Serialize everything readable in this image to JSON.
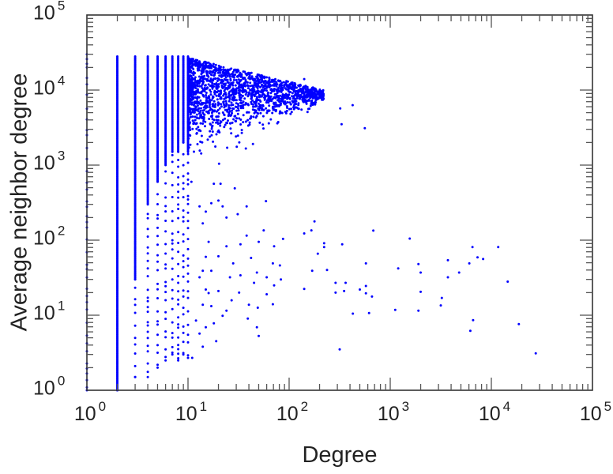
{
  "chart_data": {
    "type": "scatter",
    "title": "",
    "xlabel": "Degree",
    "ylabel": "Average neighbor degree",
    "xscale": "log",
    "yscale": "log",
    "xlim": [
      1,
      100000
    ],
    "ylim": [
      1,
      100000
    ],
    "grid": false,
    "marker_color": "#0000ff",
    "x_ticks": [
      {
        "base": "10",
        "exp": "0"
      },
      {
        "base": "10",
        "exp": "1"
      },
      {
        "base": "10",
        "exp": "2"
      },
      {
        "base": "10",
        "exp": "3"
      },
      {
        "base": "10",
        "exp": "4"
      },
      {
        "base": "10",
        "exp": "5"
      }
    ],
    "y_ticks": [
      {
        "base": "10",
        "exp": "0"
      },
      {
        "base": "10",
        "exp": "1"
      },
      {
        "base": "10",
        "exp": "2"
      },
      {
        "base": "10",
        "exp": "3"
      },
      {
        "base": "10",
        "exp": "4"
      },
      {
        "base": "10",
        "exp": "5"
      }
    ],
    "degree_columns": [
      {
        "x": 1,
        "y_top": 30000,
        "dense_min": 20000,
        "sparse_min": 1
      },
      {
        "x": 2,
        "y_top": 28000,
        "dense_min": 1,
        "sparse_min": 1
      },
      {
        "x": 3,
        "y_top": 28000,
        "dense_min": 30,
        "sparse_min": 1.5
      },
      {
        "x": 4,
        "y_top": 28000,
        "dense_min": 300,
        "sparse_min": 1.5
      },
      {
        "x": 5,
        "y_top": 28000,
        "dense_min": 600,
        "sparse_min": 2
      },
      {
        "x": 6,
        "y_top": 28000,
        "dense_min": 1000,
        "sparse_min": 2.5
      },
      {
        "x": 7,
        "y_top": 28000,
        "dense_min": 1500,
        "sparse_min": 3
      },
      {
        "x": 8,
        "y_top": 28000,
        "dense_min": 1500,
        "sparse_min": 2.5
      },
      {
        "x": 9,
        "y_top": 28000,
        "dense_min": 2000,
        "sparse_min": 3
      },
      {
        "x": 10,
        "y_top": 28000,
        "dense_min": 1500,
        "sparse_min": 2.7
      }
    ],
    "dense_cloud": {
      "x_range": [
        10,
        220
      ],
      "y_center": 8500,
      "y_max_at_x10": 27000,
      "y_max_at_xmax": 10000,
      "count": 1800
    },
    "points": [
      [
        141,
        14000
      ],
      [
        320,
        5700
      ],
      [
        425,
        6300
      ],
      [
        330,
        3500
      ],
      [
        560,
        3100
      ],
      [
        141,
        123
      ],
      [
        166,
        135
      ],
      [
        178,
        178
      ],
      [
        680,
        134
      ],
      [
        222,
        91
      ],
      [
        222,
        81
      ],
      [
        192,
        66
      ],
      [
        335,
        88
      ],
      [
        1560,
        105
      ],
      [
        169,
        39
      ],
      [
        237,
        40
      ],
      [
        141,
        22.4
      ],
      [
        288,
        27
      ],
      [
        362,
        27
      ],
      [
        288,
        20
      ],
      [
        350,
        21
      ],
      [
        575,
        49
      ],
      [
        500,
        22
      ],
      [
        575,
        24.5
      ],
      [
        575,
        19.6
      ],
      [
        660,
        17.7
      ],
      [
        427,
        10.5
      ],
      [
        617,
        10.7
      ],
      [
        316,
        3.5
      ],
      [
        1200,
        42
      ],
      [
        1120,
        11.8
      ],
      [
        1900,
        48
      ],
      [
        2000,
        37
      ],
      [
        2000,
        20.5
      ],
      [
        1900,
        11.5
      ],
      [
        3720,
        54
      ],
      [
        3720,
        32
      ],
      [
        3240,
        17
      ],
      [
        3160,
        13.5
      ],
      [
        4800,
        37
      ],
      [
        6050,
        49
      ],
      [
        6500,
        81
      ],
      [
        7300,
        59
      ],
      [
        8300,
        56
      ],
      [
        11700,
        81
      ],
      [
        6600,
        8.6
      ],
      [
        6200,
        6.2
      ],
      [
        14500,
        28
      ],
      [
        18700,
        7.6
      ],
      [
        27500,
        3.1
      ],
      [
        10.8,
        600
      ],
      [
        18,
        565
      ],
      [
        21,
        565
      ],
      [
        29,
        490
      ],
      [
        59,
        331
      ],
      [
        20,
        337
      ],
      [
        13,
        282
      ],
      [
        22,
        282
      ],
      [
        38,
        282
      ],
      [
        31,
        222
      ],
      [
        24,
        200
      ],
      [
        56,
        135
      ],
      [
        38,
        115
      ],
      [
        87,
        104
      ],
      [
        50,
        95
      ],
      [
        71,
        83
      ],
      [
        33,
        88
      ],
      [
        24,
        83
      ],
      [
        42,
        58
      ],
      [
        69,
        49
      ],
      [
        81,
        46
      ],
      [
        48,
        37
      ],
      [
        60,
        32
      ],
      [
        83,
        30
      ],
      [
        45,
        27
      ],
      [
        71,
        25
      ],
      [
        32,
        20
      ],
      [
        60,
        19
      ],
      [
        69,
        14
      ],
      [
        40,
        13.8
      ],
      [
        49,
        12.6
      ],
      [
        27,
        15.8
      ],
      [
        24,
        11.5
      ],
      [
        22,
        9.8
      ],
      [
        39,
        9
      ],
      [
        48,
        6.9
      ],
      [
        50,
        5.3
      ],
      [
        18,
        7.8
      ],
      [
        19,
        4.5
      ],
      [
        14,
        3.8
      ],
      [
        11,
        2.7
      ],
      [
        26,
        32
      ],
      [
        33,
        34
      ],
      [
        28,
        49
      ],
      [
        20,
        61
      ],
      [
        15,
        60
      ],
      [
        16,
        95
      ],
      [
        14,
        167
      ],
      [
        15,
        240
      ],
      [
        17,
        310
      ],
      [
        13,
        32
      ],
      [
        14,
        39
      ],
      [
        17,
        39
      ],
      [
        20,
        21
      ],
      [
        16,
        19.7
      ],
      [
        15,
        22
      ],
      [
        14,
        13.8
      ],
      [
        17,
        13.2
      ],
      [
        15,
        6.9
      ],
      [
        13,
        5.7
      ],
      [
        12,
        8.5
      ]
    ]
  }
}
